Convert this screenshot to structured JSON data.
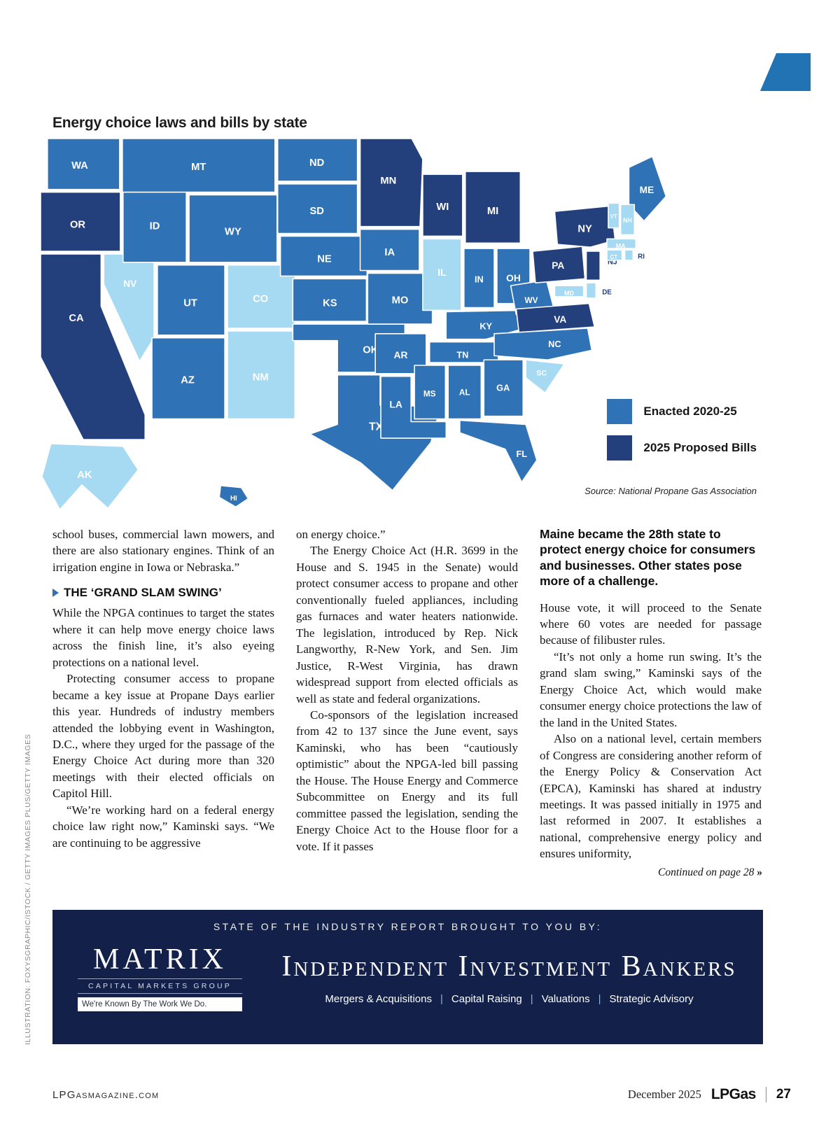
{
  "page": {
    "credit_vertical": "ILLUSTRATION: FOXYSGRAPHIC/ISTOCK / GETTY IMAGES PLUS/GETTY IMAGES",
    "footer": {
      "site": "LPGasmagazine.com",
      "date": "December 2025",
      "magazine": "LPGas",
      "page_number": "27"
    },
    "accent_color": "#2173b4"
  },
  "map": {
    "title": "Energy choice laws and bills by state",
    "source": "Source: National Propane Gas Association",
    "colors": {
      "E": "#2f72b6",
      "P": "#24407c",
      "N": "#a6d9f2"
    },
    "legend": [
      {
        "label": "Enacted 2020-25",
        "key": "E"
      },
      {
        "label": "2025 Proposed Bills",
        "key": "P"
      }
    ],
    "enacted_states": [
      "WA",
      "ID",
      "MT",
      "WY",
      "UT",
      "AZ",
      "ND",
      "SD",
      "NE",
      "KS",
      "OK",
      "TX",
      "IA",
      "MO",
      "AR",
      "LA",
      "IN",
      "OH",
      "KY",
      "TN",
      "MS",
      "AL",
      "GA",
      "FL",
      "NC",
      "WV",
      "ME",
      "HI"
    ],
    "proposed_states": [
      "OR",
      "CA",
      "MN",
      "WI",
      "MI",
      "PA",
      "NY",
      "NJ",
      "VA"
    ],
    "no_action_states": [
      "NV",
      "CO",
      "NM",
      "IL",
      "SC",
      "AK",
      "VT",
      "NH",
      "MA",
      "CT",
      "RI",
      "MD",
      "DE"
    ],
    "states": [
      {
        "id": "CA",
        "f": "P",
        "p": "0,168 88,168 88,244 152,402 152,438 62,438 0,318",
        "l": [
          52,
          262
        ],
        "s": 15
      },
      {
        "id": "WA",
        "f": "E",
        "r": [
          10,
          0,
          105,
          74
        ],
        "l": [
          57,
          40
        ],
        "s": 15
      },
      {
        "id": "OR",
        "f": "P",
        "r": [
          0,
          78,
          116,
          86
        ],
        "l": [
          54,
          126
        ],
        "s": 15
      },
      {
        "id": "NV",
        "f": "N",
        "p": "92,168 165,168 165,290 144,324 92,212",
        "l": [
          130,
          212
        ],
        "s": 14
      },
      {
        "id": "ID",
        "f": "E",
        "r": [
          120,
          62,
          92,
          118
        ],
        "l": [
          166,
          128
        ],
        "s": 15
      },
      {
        "id": "MT",
        "f": "E",
        "r": [
          119,
          0,
          222,
          78
        ],
        "l": [
          230,
          42
        ],
        "s": 15
      },
      {
        "id": "WY",
        "f": "E",
        "r": [
          216,
          82,
          128,
          98
        ],
        "l": [
          280,
          136
        ],
        "s": 15
      },
      {
        "id": "UT",
        "f": "E",
        "r": [
          170,
          184,
          98,
          102
        ],
        "l": [
          218,
          240
        ],
        "s": 15
      },
      {
        "id": "CO",
        "f": "N",
        "r": [
          272,
          184,
          98,
          92
        ],
        "l": [
          320,
          234
        ],
        "s": 15
      },
      {
        "id": "AZ",
        "f": "E",
        "r": [
          162,
          290,
          106,
          118
        ],
        "l": [
          214,
          352
        ],
        "s": 15
      },
      {
        "id": "NM",
        "f": "N",
        "r": [
          272,
          280,
          98,
          128
        ],
        "l": [
          320,
          348
        ],
        "s": 15
      },
      {
        "id": "ND",
        "f": "E",
        "r": [
          345,
          0,
          116,
          62
        ],
        "l": [
          402,
          36
        ],
        "s": 15
      },
      {
        "id": "SD",
        "f": "E",
        "r": [
          345,
          66,
          116,
          72
        ],
        "l": [
          402,
          106
        ],
        "s": 15
      },
      {
        "id": "NE",
        "f": "E",
        "r": [
          349,
          142,
          126,
          58
        ],
        "l": [
          413,
          176
        ],
        "s": 15
      },
      {
        "id": "KS",
        "f": "E",
        "r": [
          367,
          204,
          107,
          62
        ],
        "l": [
          421,
          240
        ],
        "s": 15
      },
      {
        "id": "OK",
        "f": "E",
        "p": "367,270 530,270 530,340 432,340 432,294 367,294",
        "l": [
          480,
          308
        ],
        "s": 15
      },
      {
        "id": "TX",
        "f": "E",
        "p": "432,344 494,344 494,388 582,390 568,442 512,512 466,472 392,430 432,416",
        "l": [
          488,
          420
        ],
        "s": 16
      },
      {
        "id": "MN",
        "f": "P",
        "p": "465,0 540,0 556,30 552,128 465,128",
        "l": [
          506,
          62
        ],
        "s": 15
      },
      {
        "id": "IA",
        "f": "E",
        "r": [
          465,
          132,
          86,
          60
        ],
        "l": [
          508,
          166
        ],
        "s": 15
      },
      {
        "id": "MO",
        "f": "E",
        "r": [
          476,
          196,
          94,
          74
        ],
        "l": [
          523,
          236
        ],
        "s": 15
      },
      {
        "id": "AR",
        "f": "E",
        "r": [
          487,
          284,
          74,
          58
        ],
        "l": [
          524,
          316
        ],
        "s": 14
      },
      {
        "id": "LA",
        "f": "E",
        "p": "495,346 539,346 539,412 590,412 590,436 495,436",
        "l": [
          517,
          388
        ],
        "s": 14
      },
      {
        "id": "WI",
        "f": "P",
        "r": [
          556,
          52,
          58,
          90
        ],
        "l": [
          585,
          100
        ],
        "s": 15
      },
      {
        "id": "IL",
        "f": "N",
        "r": [
          556,
          146,
          56,
          104
        ],
        "l": [
          584,
          196
        ],
        "s": 14
      },
      {
        "id": "MI",
        "f": "P",
        "r": [
          618,
          48,
          80,
          104
        ],
        "l": [
          658,
          106
        ],
        "s": 15
      },
      {
        "id": "IN",
        "f": "E",
        "r": [
          616,
          160,
          44,
          86
        ],
        "l": [
          638,
          206
        ],
        "s": 13
      },
      {
        "id": "OH",
        "f": "E",
        "r": [
          664,
          160,
          48,
          80
        ],
        "l": [
          688,
          204
        ],
        "s": 14
      },
      {
        "id": "KY",
        "f": "E",
        "p": "590,252 700,250 712,274 648,292 590,292",
        "l": [
          648,
          274
        ],
        "s": 13
      },
      {
        "id": "TN",
        "f": "E",
        "r": [
          566,
          296,
          100,
          30
        ],
        "l": [
          614,
          316
        ],
        "s": 13
      },
      {
        "id": "MS",
        "f": "E",
        "r": [
          544,
          330,
          45,
          78
        ],
        "l": [
          566,
          372
        ],
        "s": 12
      },
      {
        "id": "AL",
        "f": "E",
        "r": [
          593,
          330,
          48,
          78
        ],
        "l": [
          617,
          370
        ],
        "s": 12
      },
      {
        "id": "GA",
        "f": "E",
        "r": [
          645,
          322,
          57,
          82
        ],
        "l": [
          673,
          364
        ],
        "s": 13
      },
      {
        "id": "WV",
        "f": "E",
        "p": "684,214 736,206 748,252 692,256",
        "l": [
          714,
          236
        ],
        "s": 12
      },
      {
        "id": "VA",
        "f": "P",
        "p": "692,248 798,240 806,274 696,282",
        "l": [
          756,
          264
        ],
        "s": 14
      },
      {
        "id": "NC",
        "f": "E",
        "p": "660,284 796,276 802,308 738,322 660,316",
        "l": [
          748,
          300
        ],
        "s": 13
      },
      {
        "id": "SC",
        "f": "N",
        "p": "706,322 762,328 734,370 706,348",
        "l": [
          729,
          342
        ],
        "s": 11
      },
      {
        "id": "FL",
        "f": "E",
        "p": "610,410 706,416 722,468 700,500 676,452 610,428",
        "l": [
          700,
          460
        ],
        "s": 13
      },
      {
        "id": "PA",
        "f": "P",
        "p": "716,164 788,157 792,204 720,210",
        "l": [
          753,
          186
        ],
        "s": 14
      },
      {
        "id": "NY",
        "f": "P",
        "p": "748,106 830,98 836,148 800,158 752,154",
        "l": [
          792,
          132
        ],
        "s": 15
      },
      {
        "id": "NJ",
        "f": "P",
        "r": [
          794,
          164,
          20,
          42
        ],
        "l": [
          832,
          180
        ],
        "s": 11,
        "lc": "n"
      },
      {
        "id": "MD",
        "f": "N",
        "r": [
          748,
          214,
          42,
          16
        ],
        "l": [
          769,
          226
        ],
        "s": 9
      },
      {
        "id": "DE",
        "f": "N",
        "r": [
          794,
          210,
          14,
          22
        ],
        "l": [
          824,
          224
        ],
        "s": 10,
        "lc": "n"
      },
      {
        "id": "ME",
        "f": "E",
        "p": "856,42 890,26 910,84 878,120 856,96",
        "l": [
          882,
          76
        ],
        "s": 14
      },
      {
        "id": "VT",
        "f": "N",
        "r": [
          826,
          94,
          16,
          36
        ],
        "l": [
          834,
          114
        ],
        "s": 8
      },
      {
        "id": "NH",
        "f": "N",
        "r": [
          844,
          96,
          20,
          44
        ],
        "l": [
          854,
          120
        ],
        "s": 9
      },
      {
        "id": "MA",
        "f": "N",
        "r": [
          824,
          146,
          42,
          14
        ],
        "l": [
          844,
          157
        ],
        "s": 9
      },
      {
        "id": "CT",
        "f": "N",
        "r": [
          824,
          162,
          22,
          15
        ],
        "l": [
          834,
          173
        ],
        "s": 8
      },
      {
        "id": "RI",
        "f": "N",
        "r": [
          850,
          162,
          12,
          15
        ],
        "l": [
          874,
          172
        ],
        "s": 10,
        "lc": "n"
      },
      {
        "id": "AK",
        "f": "N",
        "p": "15,444 120,448 142,482 98,538 60,504 28,540 2,492",
        "l": [
          64,
          490
        ],
        "s": 15
      },
      {
        "id": "HI",
        "f": "E",
        "p": "262,505 292,508 302,524 284,536 260,522",
        "l": [
          281,
          524
        ],
        "s": 10
      }
    ]
  },
  "article": {
    "heading": "THE ‘GRAND SLAM SWING’",
    "col1_pre": [
      {
        "t": "school buses, commercial lawn mowers, and there are also stationary engines. Think of an irrigation engine in Iowa or Nebraska.”",
        "i": false
      }
    ],
    "col1_post": [
      {
        "t": "While the NPGA continues to target the states where it can help move energy choice laws across the finish line, it’s also eyeing protections on a national level.",
        "i": false
      },
      {
        "t": "Protecting consumer access to propane became a key issue at Propane Days earlier this year. Hundreds of industry members attended the lobbying event in Washington, D.C., where they urged for the passage of the Energy Choice Act during more than 320 meetings with their elected officials on Capitol Hill.",
        "i": true
      },
      {
        "t": "“We’re working hard on a federal energy choice law right now,” Kaminski says. “We are continuing to be aggressive",
        "i": true
      }
    ],
    "col2": [
      {
        "t": "on energy choice.”",
        "i": false
      },
      {
        "t": "The Energy Choice Act (H.R. 3699 in the House and S. 1945 in the Senate) would protect consumer access to propane and other conventionally fueled appliances, including gas furnaces and water heaters nationwide. The legislation, introduced by Rep. Nick Langworthy, R-New York, and Sen. Jim Justice, R-West Virginia, has drawn widespread support from elected officials as well as state and federal organizations.",
        "i": true
      },
      {
        "t": "Co-sponsors of the legislation increased from 42 to 137 since the June event, says Kaminski, who has been “cautiously optimistic” about the NPGA-led bill passing the House. The House Energy and Commerce Subcommittee on Energy and its full committee passed the legislation, sending the Energy Choice Act to the House floor for a vote. If it passes",
        "i": true
      }
    ],
    "col3_callout": "Maine became the 28th state to protect energy choice for consumers and businesses. Other states pose more of a challenge.",
    "col3": [
      {
        "t": "House vote, it will proceed to the Senate where 60 votes are needed for passage because of filibuster rules.",
        "i": false
      },
      {
        "t": "“It’s not only a home run swing. It’s the grand slam swing,” Kaminski says of the Energy Choice Act, which would make consumer energy choice protections the law of the land in the United States.",
        "i": true
      },
      {
        "t": "Also on a national level, certain members of Congress are considering another reform of the Energy Policy & Conservation Act (EPCA), Kaminski has shared at industry meetings. It was passed initially in 1975 and last reformed in 2007. It establishes a national, comprehensive energy policy and ensures uniformity,",
        "i": true
      }
    ],
    "continued": "Continued on page 28",
    "continued_chevron": "»"
  },
  "ad": {
    "kicker": "STATE OF THE INDUSTRY REPORT BROUGHT TO YOU BY:",
    "matrix_name": "MATRIX",
    "matrix_sub": "CAPITAL MARKETS GROUP",
    "matrix_tagline": "We're Known By The Work We Do.",
    "banker_title": "Independent Investment Bankers",
    "services": [
      "Mergers & Acquisitions",
      "Capital Raising",
      "Valuations",
      "Strategic Advisory"
    ],
    "separator": "|",
    "bg_color": "#12204a"
  }
}
